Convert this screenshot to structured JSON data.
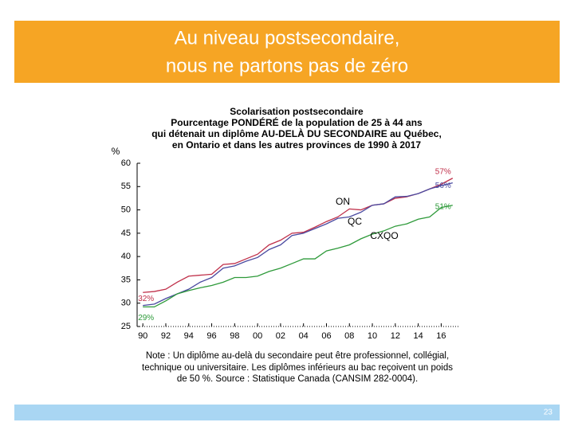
{
  "header": {
    "title": [
      "Au niveau postsecondaire,",
      "nous ne partons pas de zéro"
    ]
  },
  "chart_data": {
    "type": "line",
    "title": [
      "Scolarisation postsecondaire",
      "Pourcentage PONDÉRÉ de la population de 25 à 44 ans",
      "qui détenait un diplôme AU-DELÀ DU SECONDAIRE au Québec,",
      "en Ontario et dans les autres provinces de 1990 à 2017"
    ],
    "y_label": "%",
    "x": [
      1990,
      1991,
      1992,
      1993,
      1994,
      1995,
      1996,
      1997,
      1998,
      1999,
      2000,
      2001,
      2002,
      2003,
      2004,
      2005,
      2006,
      2007,
      2008,
      2009,
      2010,
      2011,
      2012,
      2013,
      2014,
      2015,
      2016,
      2017
    ],
    "xlim": [
      1989.5,
      2017.5
    ],
    "xticks": [
      {
        "value": 1990,
        "label": "90"
      },
      {
        "value": 1992,
        "label": "92"
      },
      {
        "value": 1994,
        "label": "94"
      },
      {
        "value": 1996,
        "label": "96"
      },
      {
        "value": 1998,
        "label": "98"
      },
      {
        "value": 2000,
        "label": "00"
      },
      {
        "value": 2002,
        "label": "02"
      },
      {
        "value": 2004,
        "label": "04"
      },
      {
        "value": 2006,
        "label": "06"
      },
      {
        "value": 2008,
        "label": "08"
      },
      {
        "value": 2010,
        "label": "10"
      },
      {
        "value": 2012,
        "label": "12"
      },
      {
        "value": 2014,
        "label": "14"
      },
      {
        "value": 2016,
        "label": "16"
      }
    ],
    "ylim": [
      25,
      60
    ],
    "yticks": [
      25,
      30,
      35,
      40,
      45,
      50,
      55,
      60
    ],
    "series": [
      {
        "name": "ON",
        "color": "#c0304a",
        "values": [
          32.3,
          32.5,
          33,
          34.5,
          35.8,
          36,
          36.2,
          38.3,
          38.5,
          39.5,
          40.5,
          42.5,
          43.5,
          45,
          45.2,
          46.3,
          47.5,
          48.5,
          50.2,
          50,
          51,
          51.3,
          52.5,
          52.8,
          53.5,
          54.5,
          55.5,
          56.8
        ],
        "value_labels": [
          "32%",
          null,
          null,
          null,
          null,
          null,
          null,
          null,
          null,
          null,
          null,
          null,
          null,
          null,
          null,
          null,
          null,
          null,
          null,
          null,
          null,
          null,
          null,
          null,
          null,
          null,
          null,
          "57%"
        ]
      },
      {
        "name": "QC",
        "color": "#4a4aa0",
        "values": [
          29.5,
          29.8,
          31,
          32,
          33,
          34.5,
          35.5,
          37.5,
          38,
          39,
          39.8,
          41.5,
          42.5,
          44.5,
          45,
          46,
          47,
          48.2,
          48.5,
          49.5,
          51,
          51.3,
          52.8,
          52.9,
          53.5,
          54.5,
          55.2,
          55.8
        ],
        "value_labels": [
          null,
          null,
          null,
          null,
          null,
          null,
          null,
          null,
          null,
          null,
          null,
          null,
          null,
          null,
          null,
          null,
          null,
          null,
          null,
          null,
          null,
          null,
          null,
          null,
          null,
          null,
          null,
          "56%"
        ]
      },
      {
        "name": "CXQO",
        "color": "#2e9a3a",
        "values": [
          29.2,
          29.2,
          30.5,
          32,
          32.7,
          33.3,
          33.8,
          34.5,
          35.5,
          35.5,
          35.8,
          36.8,
          37.5,
          38.5,
          39.5,
          39.5,
          41.2,
          41.8,
          42.5,
          43.8,
          44.8,
          45.5,
          46.5,
          47,
          48,
          48.5,
          50.5,
          51
        ],
        "value_labels": [
          "29%",
          null,
          null,
          null,
          null,
          null,
          null,
          null,
          null,
          null,
          null,
          null,
          null,
          null,
          null,
          null,
          null,
          null,
          null,
          null,
          null,
          null,
          null,
          null,
          null,
          null,
          null,
          "51%"
        ]
      }
    ],
    "note": [
      "Note : Un diplôme au-delà du secondaire peut être professionnel, collégial,",
      "technique ou universitaire. Les diplômes inférieurs au bac reçoivent un poids",
      "de 50 %. Source : Statistique Canada (CANSIM 282-0004)."
    ]
  },
  "footer": {
    "page": "23"
  }
}
